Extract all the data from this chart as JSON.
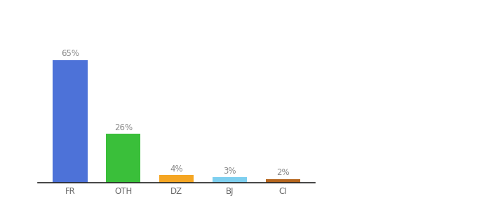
{
  "categories": [
    "FR",
    "OTH",
    "DZ",
    "BJ",
    "CI"
  ],
  "values": [
    65,
    26,
    4,
    3,
    2
  ],
  "labels": [
    "65%",
    "26%",
    "4%",
    "3%",
    "2%"
  ],
  "bar_colors": [
    "#4d72d8",
    "#3abf3a",
    "#f5a623",
    "#7ecfef",
    "#b5651d"
  ],
  "background_color": "#ffffff",
  "ylim": [
    0,
    80
  ],
  "label_fontsize": 8.5,
  "tick_fontsize": 8.5,
  "bar_width": 0.65,
  "label_color": "#888888",
  "tick_color": "#666666",
  "spine_color": "#222222"
}
